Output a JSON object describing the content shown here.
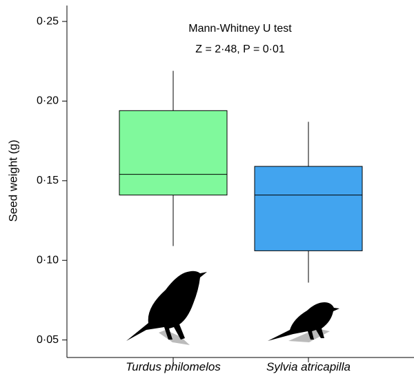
{
  "chart_data": {
    "type": "box",
    "y_label": "Seed weight (g)",
    "annotations": [
      "Mann-Whitney U test",
      "Z = 2·48, P = 0·01"
    ],
    "categories": [
      "Turdus philomelos",
      "Sylvia atricapilla"
    ],
    "boxes": [
      {
        "color": "#80f99c",
        "whisker_low": 0.109,
        "q1": 0.141,
        "median": 0.154,
        "q3": 0.194,
        "whisker_high": 0.219
      },
      {
        "color": "#42a4ef",
        "whisker_low": 0.086,
        "q1": 0.106,
        "median": 0.141,
        "q3": 0.159,
        "whisker_high": 0.187
      }
    ],
    "ylim": [
      0.039,
      0.26
    ],
    "yticks": [
      {
        "value": 0.05,
        "label": "0·05"
      },
      {
        "value": 0.1,
        "label": "0·10"
      },
      {
        "value": 0.15,
        "label": "0·15"
      },
      {
        "value": 0.2,
        "label": "0·20"
      },
      {
        "value": 0.25,
        "label": "0·25"
      }
    ]
  }
}
